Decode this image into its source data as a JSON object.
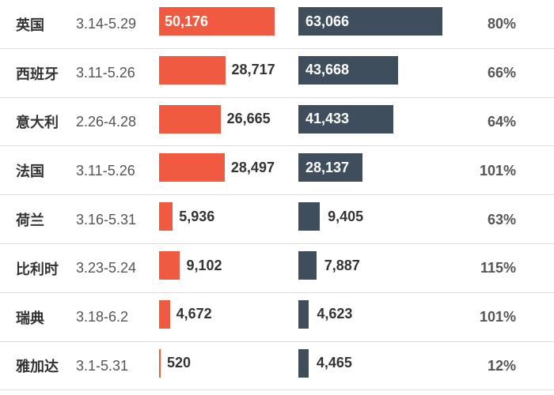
{
  "chart_data": {
    "type": "bar",
    "categories": [
      "英国",
      "西班牙",
      "意大利",
      "法国",
      "荷兰",
      "比利时",
      "瑞典",
      "雅加达"
    ],
    "periods": [
      "3.14-5.29",
      "3.11-5.26",
      "2.26-4.28",
      "3.11-5.26",
      "3.16-5.31",
      "3.23-5.24",
      "3.18-6.2",
      "3.1-5.31"
    ],
    "series": [
      {
        "values": [
          50176,
          28717,
          26665,
          28497,
          5936,
          9102,
          4672,
          520
        ],
        "labels": [
          "50,176",
          "28,717",
          "26,665",
          "28,497",
          "5,936",
          "9,102",
          "4,672",
          "520"
        ],
        "color": "#f05a40"
      },
      {
        "values": [
          63066,
          43668,
          41433,
          28137,
          9405,
          7887,
          4623,
          4465
        ],
        "labels": [
          "63,066",
          "43,668",
          "41,433",
          "28,137",
          "9,405",
          "7,887",
          "4,623",
          "4,465"
        ],
        "color": "#3f4e5c"
      }
    ],
    "ratios": [
      "80%",
      "66%",
      "64%",
      "101%",
      "63%",
      "115%",
      "101%",
      "12%"
    ],
    "title": "",
    "xlabel": "",
    "ylabel": "",
    "grid": false
  }
}
